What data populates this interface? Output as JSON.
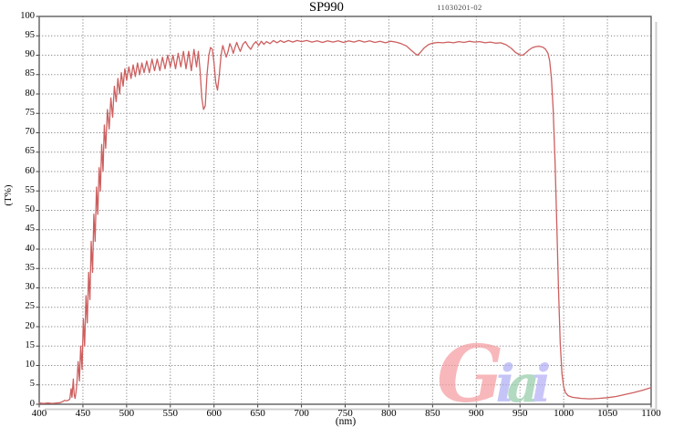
{
  "page": {
    "title": "SP990",
    "serial": "11030201-02",
    "ylabel": "(T%)",
    "xlabel": "(nm)"
  },
  "watermark": {
    "text": "Giai",
    "letters": [
      {
        "char": "G",
        "color": "#f5989b"
      },
      {
        "char": "i",
        "color": "#a9aaf3"
      },
      {
        "char": "a",
        "color": "#8fcaa4"
      },
      {
        "char": "i",
        "color": "#b0aaf5"
      }
    ]
  },
  "chart_data": {
    "type": "line",
    "title": "SP990",
    "annotation": "11030201-02",
    "xlabel": "(nm)",
    "ylabel": "(T%)",
    "xlim": [
      400,
      1100
    ],
    "ylim": [
      0,
      100
    ],
    "x_ticks": [
      400,
      450,
      500,
      550,
      600,
      650,
      700,
      750,
      800,
      850,
      900,
      950,
      1000,
      1050,
      1100
    ],
    "y_ticks": [
      0,
      5,
      10,
      15,
      20,
      25,
      30,
      35,
      40,
      45,
      50,
      55,
      60,
      65,
      70,
      75,
      80,
      85,
      90,
      95,
      100
    ],
    "grid": "dotted both axes",
    "legend": "none",
    "line_color": "#cd5f5f",
    "grid_color": "#6e6e6e",
    "border_color": "#5e5e5e",
    "description": "Shortpass filter SP990 transmission spectrum: steep oscillating rise 430-500 nm, ~93% plateau with interference ripples, dips near 588, 604, 833 and 950 nm, sharp cutoff at ~990 nm, blocked (<5%) beyond 1000 nm",
    "series": [
      {
        "name": "transmission",
        "points": [
          [
            400,
            0.3
          ],
          [
            405,
            0.2
          ],
          [
            410,
            0.3
          ],
          [
            415,
            0.2
          ],
          [
            420,
            0.3
          ],
          [
            424,
            0.4
          ],
          [
            427,
            0.7
          ],
          [
            429,
            1.0
          ],
          [
            431,
            0.9
          ],
          [
            433,
            1.0
          ],
          [
            435,
            1.3
          ],
          [
            436.5,
            4
          ],
          [
            437.5,
            1.8
          ],
          [
            439,
            6.5
          ],
          [
            440,
            2.5
          ],
          [
            441,
            1.5
          ],
          [
            442,
            3
          ],
          [
            443,
            5
          ],
          [
            444.5,
            11
          ],
          [
            446,
            6
          ],
          [
            447.5,
            15
          ],
          [
            449,
            9
          ],
          [
            450.5,
            22
          ],
          [
            452,
            15
          ],
          [
            453.5,
            28
          ],
          [
            455,
            21
          ],
          [
            456.5,
            34
          ],
          [
            458,
            27
          ],
          [
            459.5,
            42
          ],
          [
            461,
            34
          ],
          [
            462.5,
            49
          ],
          [
            464,
            42
          ],
          [
            465.5,
            56
          ],
          [
            467,
            49
          ],
          [
            468.5,
            61
          ],
          [
            470,
            55
          ],
          [
            471.5,
            67
          ],
          [
            473,
            60
          ],
          [
            474.5,
            72
          ],
          [
            476,
            66
          ],
          [
            478,
            76
          ],
          [
            480,
            71
          ],
          [
            482,
            79
          ],
          [
            484,
            74
          ],
          [
            486,
            82
          ],
          [
            488,
            78
          ],
          [
            490,
            84
          ],
          [
            492,
            80
          ],
          [
            494,
            85.5
          ],
          [
            496,
            82
          ],
          [
            498,
            86.5
          ],
          [
            500,
            83.5
          ],
          [
            502.5,
            87
          ],
          [
            505,
            84
          ],
          [
            507.5,
            87.5
          ],
          [
            510,
            84.5
          ],
          [
            512.5,
            88
          ],
          [
            515,
            85
          ],
          [
            517.5,
            88
          ],
          [
            520,
            85.5
          ],
          [
            523,
            88.5
          ],
          [
            526,
            85.5
          ],
          [
            529,
            89
          ],
          [
            532,
            86
          ],
          [
            535,
            89
          ],
          [
            538,
            86
          ],
          [
            541,
            89.5
          ],
          [
            544,
            86.5
          ],
          [
            547,
            90
          ],
          [
            550,
            87
          ],
          [
            553,
            90
          ],
          [
            556,
            86.5
          ],
          [
            559,
            90.5
          ],
          [
            562,
            87
          ],
          [
            565,
            91
          ],
          [
            568,
            86.5
          ],
          [
            571,
            91
          ],
          [
            574,
            86
          ],
          [
            577,
            91.5
          ],
          [
            580,
            87
          ],
          [
            582,
            91
          ],
          [
            584,
            86
          ],
          [
            586,
            79
          ],
          [
            588,
            76
          ],
          [
            590,
            77
          ],
          [
            592,
            85
          ],
          [
            594,
            90
          ],
          [
            596,
            92
          ],
          [
            598,
            91.5
          ],
          [
            600,
            88
          ],
          [
            602,
            83
          ],
          [
            604,
            81
          ],
          [
            606,
            85
          ],
          [
            608,
            90
          ],
          [
            610,
            92.5
          ],
          [
            612,
            91
          ],
          [
            614,
            89.5
          ],
          [
            616,
            91
          ],
          [
            618,
            93
          ],
          [
            620,
            92
          ],
          [
            622,
            90.5
          ],
          [
            624,
            92
          ],
          [
            626,
            93.3
          ],
          [
            628,
            92
          ],
          [
            630,
            91
          ],
          [
            633,
            92.8
          ],
          [
            636,
            93.5
          ],
          [
            639,
            92.3
          ],
          [
            642,
            91.5
          ],
          [
            645,
            92.8
          ],
          [
            648,
            93.5
          ],
          [
            651,
            92.5
          ],
          [
            654,
            93.6
          ],
          [
            657,
            92.8
          ],
          [
            660,
            93.5
          ],
          [
            664,
            93
          ],
          [
            668,
            93.8
          ],
          [
            672,
            93.2
          ],
          [
            676,
            93.8
          ],
          [
            680,
            93.3
          ],
          [
            685,
            93.8
          ],
          [
            690,
            93.4
          ],
          [
            695,
            93.8
          ],
          [
            700,
            93.5
          ],
          [
            706,
            93.8
          ],
          [
            712,
            93.4
          ],
          [
            718,
            93.7
          ],
          [
            724,
            93.3
          ],
          [
            730,
            93.7
          ],
          [
            736,
            93.4
          ],
          [
            742,
            93.7
          ],
          [
            748,
            93.3
          ],
          [
            754,
            93.7
          ],
          [
            760,
            93.4
          ],
          [
            766,
            93.8
          ],
          [
            772,
            93.4
          ],
          [
            778,
            93.7
          ],
          [
            784,
            93.3
          ],
          [
            790,
            93.6
          ],
          [
            796,
            93.2
          ],
          [
            802,
            93.6
          ],
          [
            808,
            93.4
          ],
          [
            814,
            93
          ],
          [
            820,
            92.4
          ],
          [
            825,
            91.4
          ],
          [
            830,
            90.4
          ],
          [
            833,
            90
          ],
          [
            836,
            90.7
          ],
          [
            840,
            91.8
          ],
          [
            845,
            92.7
          ],
          [
            850,
            93.1
          ],
          [
            856,
            93.3
          ],
          [
            862,
            93.2
          ],
          [
            868,
            93.4
          ],
          [
            874,
            93.2
          ],
          [
            880,
            93.5
          ],
          [
            886,
            93.3
          ],
          [
            892,
            93.6
          ],
          [
            898,
            93.4
          ],
          [
            904,
            93.5
          ],
          [
            910,
            93.2
          ],
          [
            916,
            93.4
          ],
          [
            922,
            93.1
          ],
          [
            928,
            93.2
          ],
          [
            934,
            92.7
          ],
          [
            940,
            91.8
          ],
          [
            945,
            90.7
          ],
          [
            950,
            90.1
          ],
          [
            953,
            90
          ],
          [
            956,
            90.5
          ],
          [
            960,
            91.3
          ],
          [
            964,
            91.9
          ],
          [
            968,
            92.2
          ],
          [
            972,
            92.3
          ],
          [
            976,
            92.1
          ],
          [
            979,
            91.6
          ],
          [
            982,
            90.5
          ],
          [
            984,
            88.5
          ],
          [
            986,
            84
          ],
          [
            988,
            76
          ],
          [
            990,
            63
          ],
          [
            992,
            47
          ],
          [
            994,
            30
          ],
          [
            996,
            16
          ],
          [
            998,
            8
          ],
          [
            1000,
            4.5
          ],
          [
            1002,
            3
          ],
          [
            1005,
            2.2
          ],
          [
            1010,
            1.8
          ],
          [
            1020,
            1.5
          ],
          [
            1030,
            1.4
          ],
          [
            1040,
            1.5
          ],
          [
            1050,
            1.7
          ],
          [
            1060,
            2
          ],
          [
            1070,
            2.5
          ],
          [
            1080,
            3
          ],
          [
            1090,
            3.6
          ],
          [
            1100,
            4.3
          ]
        ]
      }
    ]
  }
}
